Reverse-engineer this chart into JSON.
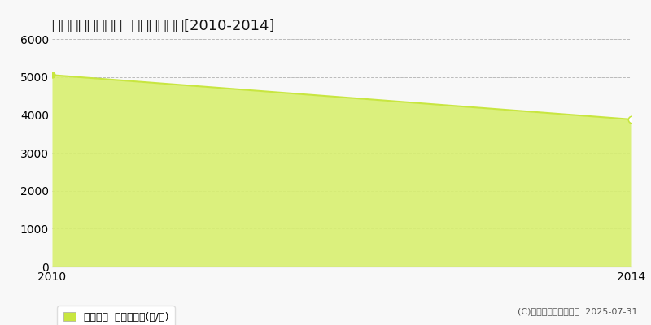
{
  "title": "夕張郡由仁町伏見  農地価格推移[2010-2014]",
  "years": [
    2010,
    2014
  ],
  "values": [
    5050,
    3880
  ],
  "xlim": [
    2010,
    2014
  ],
  "ylim": [
    0,
    6000
  ],
  "yticks": [
    0,
    1000,
    2000,
    3000,
    4000,
    5000,
    6000
  ],
  "xticks": [
    2010,
    2014
  ],
  "line_color": "#c8e640",
  "fill_color": "#d8f070",
  "fill_alpha": 0.9,
  "marker_color_end": "#ffffff",
  "grid_color": "#bbbbbb",
  "background_color": "#f8f8f8",
  "legend_label": "農地価格  平均坪単価(円/坪)",
  "copyright_text": "(C)土地価格ドットコム  2025-07-31",
  "title_fontsize": 13,
  "axis_fontsize": 10,
  "legend_fontsize": 9,
  "copyright_fontsize": 8
}
